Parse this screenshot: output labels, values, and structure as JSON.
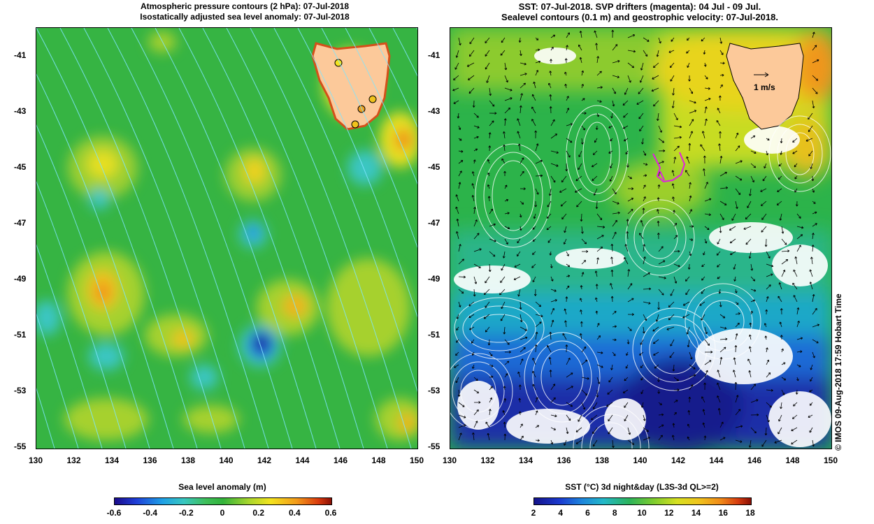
{
  "left_panel": {
    "title_line1": "Atmospheric pressure contours (2 hPa): 07-Jul-2018",
    "title_line2": "Isostatically adjusted sea level anomaly: 07-Jul-2018",
    "colorbar_title": "Sea level anomaly (m)",
    "colorbar_ticks": [
      "-0.6",
      "-0.4",
      "-0.2",
      "0",
      "0.2",
      "0.4",
      "0.6"
    ]
  },
  "right_panel": {
    "title_line1": "SST: 07-Jul-2018. SVP drifters (magenta): 04 Jul - 09 Jul.",
    "title_line2": "Sealevel contours (0.1 m) and geostrophic velocity: 07-Jul-2018.",
    "colorbar_title": "SST (°C) 3d night&day (L3S-3d QL>=2)",
    "colorbar_ticks": [
      "2",
      "4",
      "6",
      "8",
      "10",
      "12",
      "14",
      "16",
      "18"
    ],
    "velocity_scale_label": "1 m/s"
  },
  "axes": {
    "y_ticks": [
      "-41",
      "-43",
      "-45",
      "-47",
      "-49",
      "-51",
      "-53",
      "-55"
    ],
    "x_ticks": [
      "130",
      "132",
      "134",
      "136",
      "138",
      "140",
      "142",
      "144",
      "146",
      "148",
      "150"
    ]
  },
  "credit": "© IMOS 09-Aug-2018 17:59 Hobart Time",
  "colors": {
    "land": "#fcc99a",
    "contour_left": "#7fe6ff",
    "contour_right": "#ffffff",
    "drifter": "#e020e0"
  }
}
